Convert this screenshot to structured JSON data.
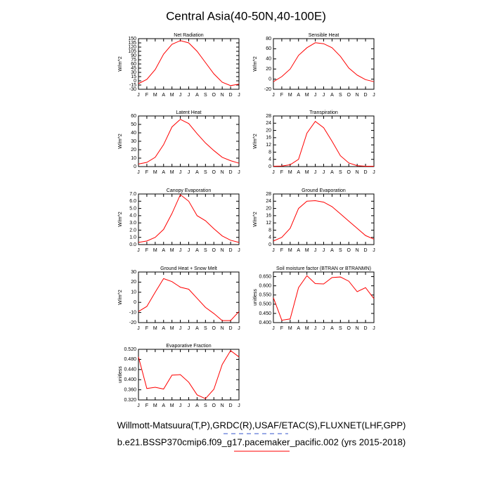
{
  "title": "Central Asia(40-50N,40-100E)",
  "footer": [
    "Willmott-Matsuura(T,P),GRDC(R),USAF/ETAC(S),FLUXNET(LHF,GPP)",
    "b.e21.BSSP370cmip6.f09_g17.pacemaker_pacific.002 (yrs 2015-2018)"
  ],
  "chart_data": [
    {
      "type": "line",
      "title": "Net Radiation",
      "ylabel": "W/m^2",
      "color": "#ff0000",
      "categories": [
        "J",
        "F",
        "M",
        "A",
        "M",
        "J",
        "J",
        "A",
        "S",
        "O",
        "N",
        "D",
        "J"
      ],
      "values": [
        -10,
        5,
        40,
        95,
        130,
        143,
        135,
        105,
        65,
        25,
        -5,
        -17,
        -12
      ],
      "ylim": [
        -30,
        150
      ],
      "yticks": [
        -30,
        -15,
        0,
        15,
        30,
        45,
        60,
        75,
        90,
        105,
        120,
        135,
        150
      ]
    },
    {
      "type": "line",
      "title": "Sensible Heat",
      "ylabel": "W/m^2",
      "color": "#ff0000",
      "categories": [
        "J",
        "F",
        "M",
        "A",
        "M",
        "J",
        "J",
        "A",
        "S",
        "O",
        "N",
        "D",
        "J"
      ],
      "values": [
        -5,
        5,
        20,
        47,
        62,
        72,
        70,
        62,
        45,
        22,
        8,
        -1,
        -5
      ],
      "ylim": [
        -20,
        80
      ],
      "yticks": [
        -20,
        0,
        20,
        40,
        60,
        80
      ]
    },
    {
      "type": "line",
      "title": "Latent Heat",
      "ylabel": "W/m^2",
      "color": "#ff0000",
      "categories": [
        "J",
        "F",
        "M",
        "A",
        "M",
        "J",
        "J",
        "A",
        "S",
        "O",
        "N",
        "D",
        "J"
      ],
      "values": [
        3,
        5,
        11,
        26,
        47,
        56,
        51,
        39,
        28,
        19,
        11,
        7,
        4
      ],
      "ylim": [
        0,
        60
      ],
      "yticks": [
        0,
        10,
        20,
        30,
        40,
        50,
        60
      ]
    },
    {
      "type": "line",
      "title": "Transpiration",
      "ylabel": "W/m^2",
      "color": "#ff0000",
      "categories": [
        "J",
        "F",
        "M",
        "A",
        "M",
        "J",
        "J",
        "A",
        "S",
        "O",
        "N",
        "D",
        "J"
      ],
      "values": [
        0.2,
        0.3,
        1,
        4,
        18.5,
        25,
        21.5,
        14,
        6,
        2,
        0.5,
        0.2,
        0.2
      ],
      "ylim": [
        0,
        28
      ],
      "yticks": [
        0,
        4,
        8,
        12,
        16,
        20,
        24,
        28
      ]
    },
    {
      "type": "line",
      "title": "Canopy Evaporation",
      "ylabel": "W/m^2",
      "color": "#ff0000",
      "categories": [
        "J",
        "F",
        "M",
        "A",
        "M",
        "J",
        "J",
        "A",
        "S",
        "O",
        "N",
        "D",
        "J"
      ],
      "values": [
        0.3,
        0.5,
        1.0,
        2.1,
        4.3,
        6.9,
        6.0,
        4.0,
        3.3,
        2.2,
        1.2,
        0.6,
        0.3
      ],
      "ylim": [
        0,
        7
      ],
      "yticks": [
        {
          "value": 0,
          "label": "0.0"
        },
        {
          "value": 1,
          "label": "1.0"
        },
        {
          "value": 2,
          "label": "2.0"
        },
        {
          "value": 3,
          "label": "3.0"
        },
        {
          "value": 4,
          "label": "4.0"
        },
        {
          "value": 5,
          "label": "5.0"
        },
        {
          "value": 6,
          "label": "6.0"
        },
        {
          "value": 7,
          "label": "7.0"
        }
      ]
    },
    {
      "type": "line",
      "title": "Ground Evaporation",
      "ylabel": "W/m^2",
      "color": "#ff0000",
      "categories": [
        "J",
        "F",
        "M",
        "A",
        "M",
        "J",
        "J",
        "A",
        "S",
        "O",
        "N",
        "D",
        "J"
      ],
      "values": [
        2,
        4,
        9,
        20,
        24,
        24.3,
        23.5,
        21,
        17,
        13,
        9,
        5,
        3
      ],
      "ylim": [
        0,
        28
      ],
      "yticks": [
        0,
        4,
        8,
        12,
        16,
        20,
        24,
        28
      ]
    },
    {
      "type": "line",
      "title": "Ground Heat + Snow Melt",
      "ylabel": "W/m^2",
      "color": "#ff0000",
      "categories": [
        "J",
        "F",
        "M",
        "A",
        "M",
        "J",
        "J",
        "A",
        "S",
        "O",
        "N",
        "D",
        "J"
      ],
      "values": [
        -9,
        -4,
        10,
        23.5,
        20.5,
        15,
        13,
        4,
        -5,
        -11,
        -18,
        -18,
        -9
      ],
      "ylim": [
        -20,
        30
      ],
      "yticks": [
        -20,
        -10,
        0,
        10,
        20,
        30
      ]
    },
    {
      "type": "line",
      "title": "Soil moisture factor (BTRAN or BTRANMN)",
      "ylabel": "unitless",
      "color": "#ff0000",
      "categories": [
        "J",
        "F",
        "M",
        "A",
        "M",
        "J",
        "J",
        "A",
        "S",
        "O",
        "N",
        "D",
        "J"
      ],
      "values": [
        0.535,
        0.413,
        0.42,
        0.59,
        0.655,
        0.612,
        0.61,
        0.645,
        0.648,
        0.625,
        0.568,
        0.59,
        0.53
      ],
      "ylim": [
        0.4,
        0.675
      ],
      "yticks": [
        {
          "value": 0.4,
          "label": "0.400"
        },
        {
          "value": 0.45,
          "label": "0.450"
        },
        {
          "value": 0.5,
          "label": "0.500"
        },
        {
          "value": 0.55,
          "label": "0.550"
        },
        {
          "value": 0.6,
          "label": "0.600"
        },
        {
          "value": 0.65,
          "label": "0.650"
        }
      ]
    },
    {
      "type": "line",
      "title": "Evaporative Fraction",
      "ylabel": "unitless",
      "color": "#ff0000",
      "categories": [
        "J",
        "F",
        "M",
        "A",
        "M",
        "J",
        "J",
        "A",
        "S",
        "O",
        "N",
        "D",
        "J"
      ],
      "values": [
        0.49,
        0.365,
        0.37,
        0.363,
        0.418,
        0.42,
        0.39,
        0.34,
        0.325,
        0.362,
        0.46,
        0.515,
        0.49
      ],
      "ylim": [
        0.32,
        0.52
      ],
      "yticks": [
        {
          "value": 0.32,
          "label": "0.320"
        },
        {
          "value": 0.36,
          "label": "0.360"
        },
        {
          "value": 0.4,
          "label": "0.400"
        },
        {
          "value": 0.44,
          "label": "0.440"
        },
        {
          "value": 0.48,
          "label": "0.480"
        },
        {
          "value": 0.52,
          "label": "0.520"
        }
      ]
    }
  ]
}
